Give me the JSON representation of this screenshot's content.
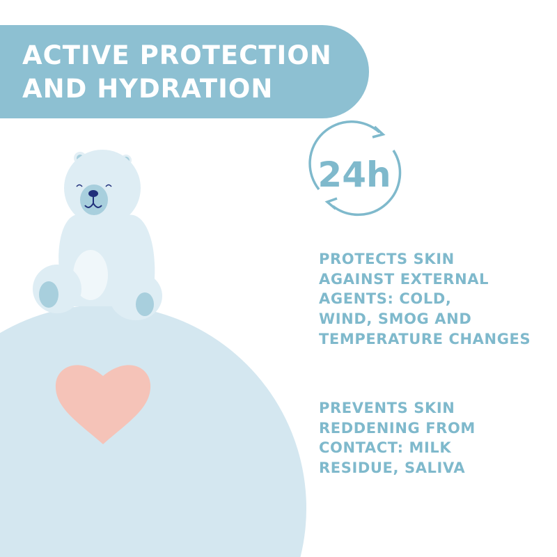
{
  "header": {
    "title_line1": "ACTIVE PROTECTION",
    "title_line2": "AND HYDRATION"
  },
  "badge": {
    "label": "24h",
    "icon": "circular-arrows-icon"
  },
  "benefits": [
    {
      "text": "PROTECTS SKIN\nAGAINST EXTERNAL\nAGENTS: COLD,\nWIND, SMOG AND\nTEMPERATURE CHANGES"
    },
    {
      "text": "PREVENTS SKIN\nREDDENING FROM\nCONTACT: MILK\nRESIDUE, SALIVA"
    }
  ],
  "colors": {
    "banner": "#8dc0d2",
    "text_accent": "#7fb9cc",
    "globe": "#d4e7f0",
    "heart": "#f5c3b8",
    "bear": "#deedf4",
    "bear_nose": "#1f2f7a"
  }
}
